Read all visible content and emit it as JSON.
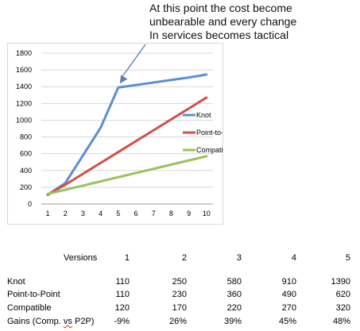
{
  "annotation": {
    "lines": [
      "At this point the cost become",
      "unbearable and every change",
      "In services becomes tactical"
    ]
  },
  "chart_data": {
    "type": "line",
    "categories": [
      "1",
      "2",
      "3",
      "4",
      "5",
      "6",
      "7",
      "8",
      "9",
      "10"
    ],
    "x": [
      1,
      2,
      3,
      4,
      5,
      6,
      7,
      8,
      9,
      10
    ],
    "ylim": [
      0,
      1800
    ],
    "yticks": [
      "0",
      "200",
      "400",
      "600",
      "800",
      "1000",
      "1200",
      "1400",
      "1600",
      "1800"
    ],
    "grid": "horizontal",
    "legend_placement": "right",
    "series": [
      {
        "name": "Knot",
        "color": "#5b8fd0",
        "values": [
          110,
          250,
          580,
          910,
          1390,
          1420,
          1450,
          1480,
          1510,
          1545
        ]
      },
      {
        "name": "Point-to-Point",
        "color": "#d0504b",
        "values": [
          110,
          230,
          360,
          490,
          620,
          750,
          880,
          1010,
          1140,
          1270
        ]
      },
      {
        "name": "Compatible",
        "color": "#98c25a",
        "values": [
          120,
          170,
          220,
          270,
          320,
          370,
          420,
          470,
          520,
          570
        ]
      }
    ],
    "annotation_arrow_target": {
      "x": 5,
      "y": 1390
    }
  },
  "table": {
    "header_label": "Versions",
    "columns": [
      "1",
      "2",
      "3",
      "4",
      "5"
    ],
    "rows": [
      {
        "label": "Knot",
        "values": [
          "110",
          "250",
          "580",
          "910",
          "1390"
        ]
      },
      {
        "label": "Point-to-Point",
        "values": [
          "110",
          "230",
          "360",
          "490",
          "620"
        ]
      },
      {
        "label": "Compatible",
        "values": [
          "120",
          "170",
          "220",
          "270",
          "320"
        ]
      },
      {
        "label_prefix": "Gains (Comp. ",
        "label_underlined": "vs",
        "label_suffix": " P2P)",
        "values": [
          "-9%",
          "26%",
          "39%",
          "45%",
          "48%"
        ]
      }
    ]
  }
}
